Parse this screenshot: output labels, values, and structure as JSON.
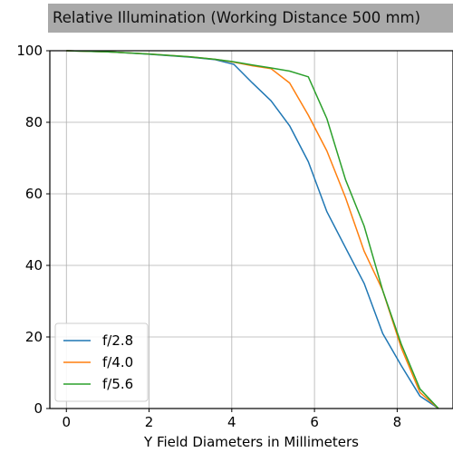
{
  "chart_data": {
    "type": "line",
    "title": "Relative Illumination (Working Distance 500 mm)",
    "xlabel": "Y Field Diameters in Millimeters",
    "ylabel": "",
    "xlim": [
      -0.4,
      9.35
    ],
    "ylim": [
      0,
      100
    ],
    "xticks": [
      0,
      2,
      4,
      6,
      8
    ],
    "yticks": [
      0,
      20,
      40,
      60,
      80,
      100
    ],
    "grid": true,
    "legend_position": "lower-left",
    "series": [
      {
        "name": "f/2.8",
        "color": "#1f77b4",
        "x": [
          0,
          1,
          2,
          3,
          3.6,
          4.05,
          4.5,
          4.95,
          5.4,
          5.85,
          6.3,
          6.75,
          7.2,
          7.65,
          8.1,
          8.55,
          9.0
        ],
        "y": [
          100,
          99.7,
          99.0,
          98.2,
          97.5,
          96.2,
          91.0,
          86.0,
          79.0,
          69.0,
          55.0,
          45.0,
          35.0,
          21.0,
          12.0,
          3.5,
          0
        ]
      },
      {
        "name": "f/4.0",
        "color": "#ff7f0e",
        "x": [
          0,
          1,
          2,
          3,
          3.6,
          4.05,
          4.5,
          4.95,
          5.4,
          5.85,
          6.3,
          6.75,
          7.2,
          7.65,
          8.1,
          8.55,
          9.0
        ],
        "y": [
          100,
          99.7,
          99.1,
          98.3,
          97.6,
          96.8,
          95.8,
          95.0,
          91.0,
          82.0,
          72.0,
          59.0,
          44.0,
          33.0,
          17.0,
          4.5,
          0
        ]
      },
      {
        "name": "f/5.6",
        "color": "#2ca02c",
        "x": [
          0,
          1,
          2,
          3,
          3.6,
          4.05,
          4.5,
          4.95,
          5.4,
          5.85,
          6.3,
          6.75,
          7.2,
          7.65,
          8.1,
          8.55,
          9.0
        ],
        "y": [
          100,
          99.7,
          99.1,
          98.3,
          97.6,
          96.9,
          96.0,
          95.2,
          94.3,
          92.7,
          81.0,
          64.0,
          51.0,
          33.0,
          18.0,
          5.5,
          0
        ]
      }
    ]
  }
}
